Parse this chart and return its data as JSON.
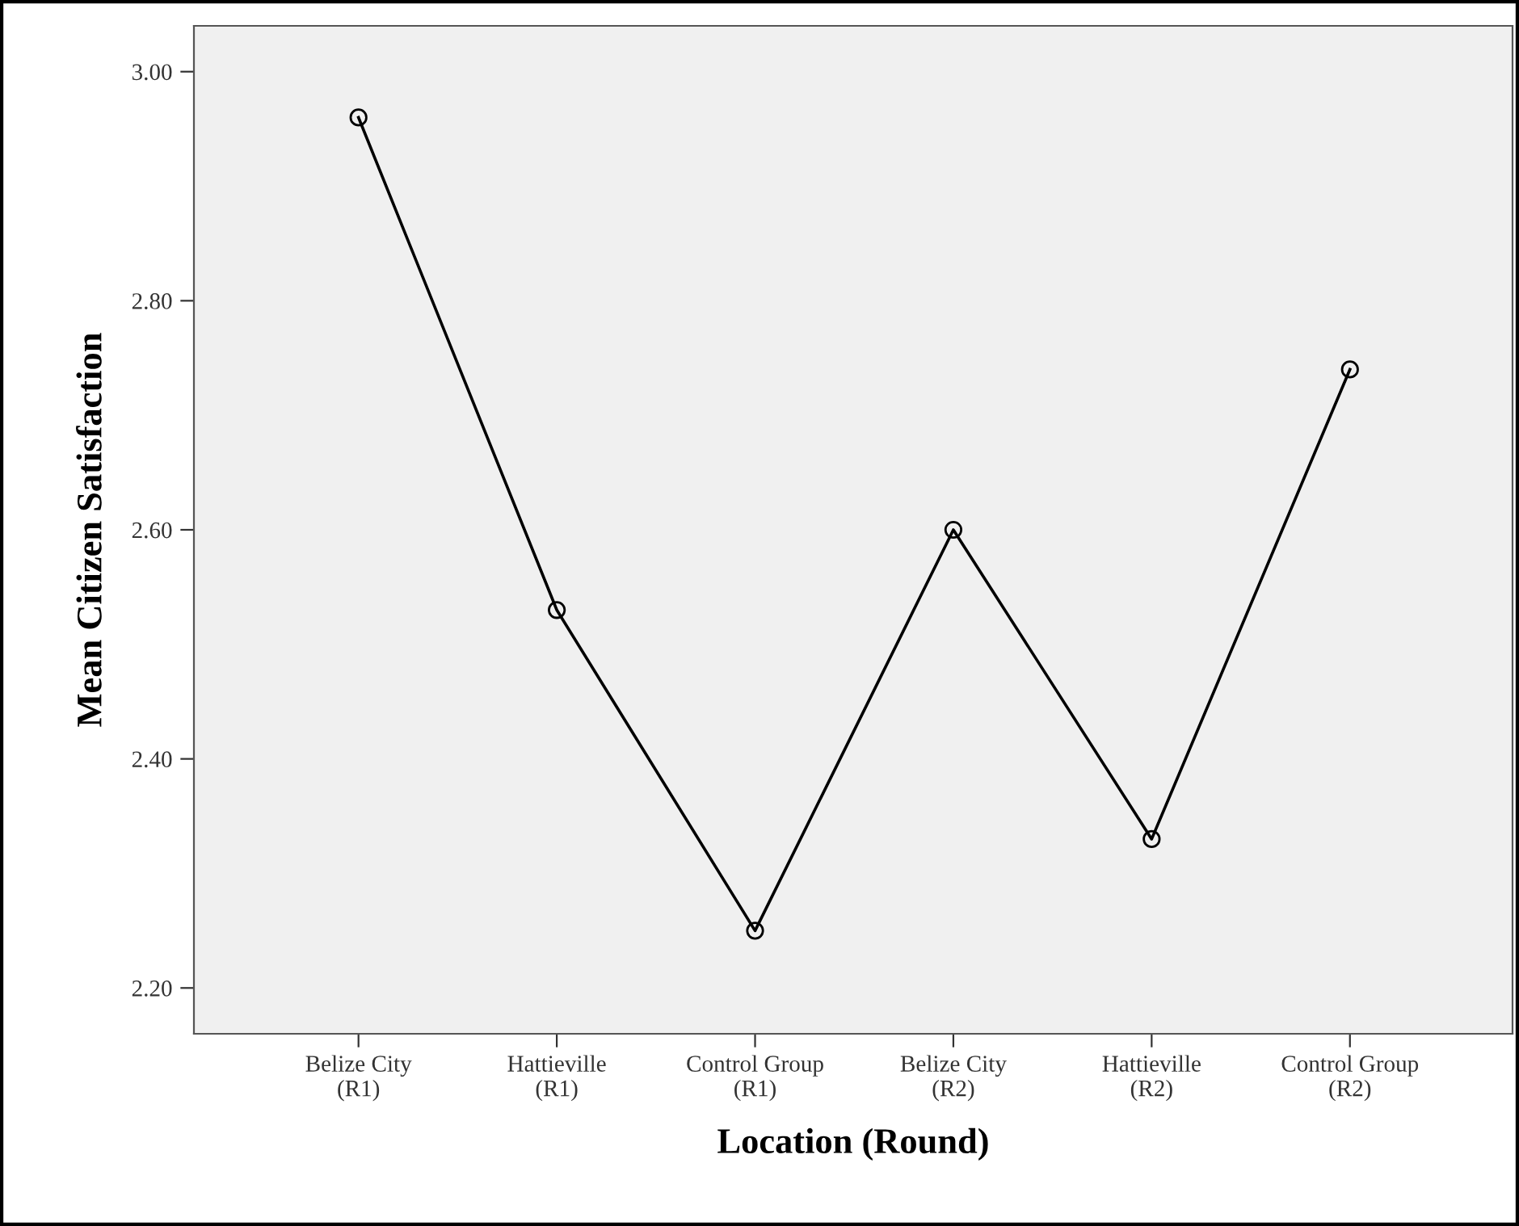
{
  "chart_data": {
    "type": "line",
    "xlabel": "Location (Round)",
    "ylabel": "Mean Citizen Satisfaction",
    "categories": [
      "Belize City\n(R1)",
      "Hattieville\n(R1)",
      "Control Group\n(R1)",
      "Belize City\n(R2)",
      "Hattieville\n(R2)",
      "Control Group\n(R2)"
    ],
    "series": [
      {
        "color": "#000000",
        "values": [
          2.96,
          2.53,
          2.25,
          2.6,
          2.33,
          2.74
        ]
      }
    ],
    "ylim": [
      2.16,
      3.04
    ],
    "yticks": [
      {
        "value": 2.2,
        "label": "2.20"
      },
      {
        "value": 2.4,
        "label": "2.40"
      },
      {
        "value": 2.6,
        "label": "2.60"
      },
      {
        "value": 2.8,
        "label": "2.80"
      },
      {
        "value": 3.0,
        "label": "3.00"
      }
    ],
    "marker": "circle",
    "line_style": "solid",
    "grid": false,
    "legend": false
  }
}
